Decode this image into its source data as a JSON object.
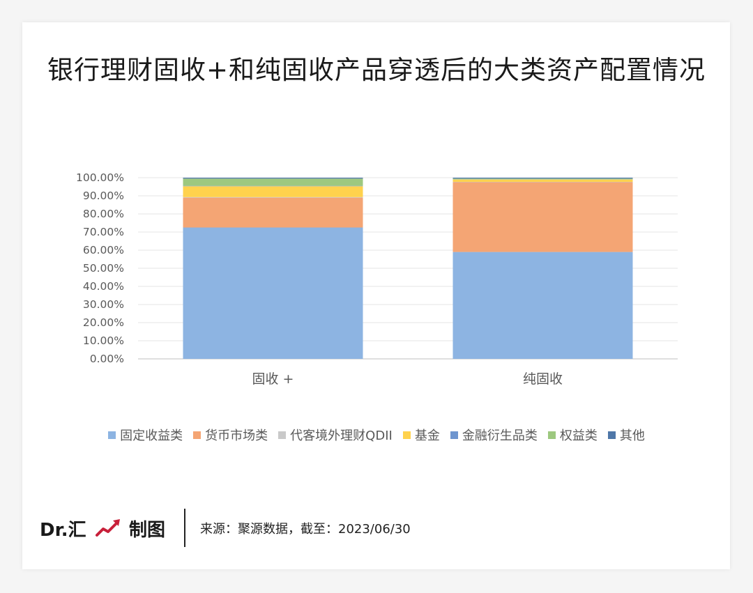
{
  "title": "银行理财固收+和纯固收产品穿透后的大类资产配置情况",
  "chart_data": {
    "type": "bar",
    "stacked": true,
    "categories": [
      "固收 +",
      "纯固收"
    ],
    "ylim": [
      0,
      1.0
    ],
    "yticks": [
      "0.00%",
      "10.00%",
      "20.00%",
      "30.00%",
      "40.00%",
      "50.00%",
      "60.00%",
      "70.00%",
      "80.00%",
      "90.00%",
      "100.00%"
    ],
    "grid": true,
    "legend_position": "bottom",
    "series": [
      {
        "name": "固定收益类",
        "color": "#8db4e2",
        "values": [
          0.725,
          0.59
        ]
      },
      {
        "name": "货币市场类",
        "color": "#f4a574",
        "values": [
          0.165,
          0.385
        ]
      },
      {
        "name": "代客境外理财QDII",
        "color": "#c9c9c9",
        "values": [
          0.003,
          0.002
        ]
      },
      {
        "name": "基金",
        "color": "#ffd24d",
        "values": [
          0.06,
          0.013
        ]
      },
      {
        "name": "金融衍生品类",
        "color": "#6e95cf",
        "values": [
          0.002,
          0.001
        ]
      },
      {
        "name": "权益类",
        "color": "#9dc87f",
        "values": [
          0.04,
          0.004
        ]
      },
      {
        "name": "其他",
        "color": "#4f77a8",
        "values": [
          0.005,
          0.005
        ]
      }
    ]
  },
  "footer": {
    "brand": "Dr.汇",
    "made": "制图",
    "source": "来源：聚源数据，截至：2023/06/30",
    "icon": "trend-up-icon",
    "icon_color": "#c8203a"
  }
}
